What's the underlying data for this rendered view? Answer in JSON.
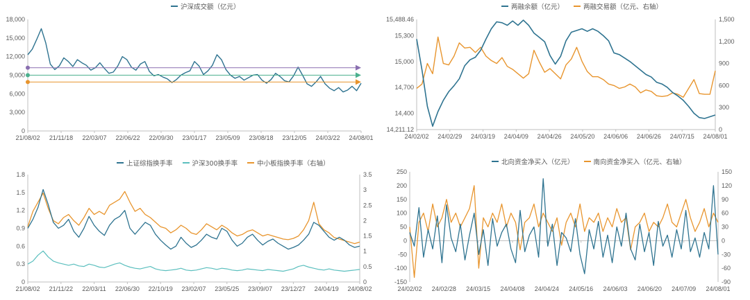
{
  "colors": {
    "blue": "#2E7390",
    "orange": "#E8952E",
    "teal": "#5BBFBE",
    "purple": "#8A6FB0",
    "green": "#4BB08E",
    "axis": "#bfbfbf",
    "text": "#595959"
  },
  "chart_data": [
    {
      "id": "turnover",
      "type": "line",
      "title": "",
      "legend": [
        "沪深成交额（亿元）"
      ],
      "yticks": [
        "18,000",
        "15,000",
        "12,000",
        "9,000",
        "6,000",
        "3,000",
        "0"
      ],
      "ylim": [
        0,
        18000
      ],
      "xticks": [
        "21/08/02",
        "21/11/18",
        "22/03/07",
        "22/06/22",
        "22/09/30",
        "23/01/17",
        "23/05/09",
        "23/08/18",
        "23/12/05",
        "24/03/22",
        "24/08/01"
      ],
      "series": [
        {
          "name": "沪深成交额（亿元）",
          "values": [
            12300,
            13200,
            14800,
            16500,
            14200,
            10800,
            9900,
            10500,
            11800,
            11200,
            10400,
            11500,
            11000,
            10600,
            9800,
            10200,
            11000,
            10100,
            9300,
            9500,
            10500,
            12000,
            11500,
            10300,
            9800,
            10800,
            11200,
            9600,
            8900,
            9100,
            8700,
            8400,
            7800,
            8300,
            9000,
            9400,
            9700,
            11200,
            10500,
            9100,
            9700,
            10600,
            12300,
            11500,
            9900,
            9000,
            8500,
            8800,
            8200,
            8600,
            9000,
            9100,
            8200,
            7700,
            8300,
            9300,
            8800,
            8100,
            7900,
            8900,
            10300,
            9000,
            7600,
            7200,
            7900,
            8800,
            7600,
            6900,
            6500,
            7000,
            6300,
            6600,
            7200,
            6500,
            7700
          ]
        },
        {
          "name": "ref-upper",
          "values": [
            10200
          ]
        },
        {
          "name": "ref-mid",
          "values": [
            9000
          ]
        },
        {
          "name": "ref-lower",
          "values": [
            7900
          ]
        }
      ]
    },
    {
      "id": "margin",
      "type": "line",
      "title": "",
      "legend": [
        "两融余额（亿元）",
        "两融交易额（亿元、右轴）"
      ],
      "yticks_left": [
        "15,488.46",
        "15,300",
        "15,000",
        "14,700",
        "14,400",
        "14,211.12"
      ],
      "ylim_left": [
        14211.12,
        15488.46
      ],
      "yticks_right": [
        "1,500",
        "1,200",
        "900",
        "600",
        "300",
        "0"
      ],
      "ylim_right": [
        0,
        1500
      ],
      "xticks": [
        "24/02/02",
        "24/02/29",
        "24/03/19",
        "24/04/09",
        "24/04/26",
        "24/05/20",
        "24/06/06",
        "24/06/26",
        "24/07/15",
        "24/08/01"
      ],
      "series": [
        {
          "name": "两融余额（亿元）",
          "axis": "left",
          "values": [
            15260,
            14900,
            14480,
            14250,
            14420,
            14550,
            14650,
            14720,
            14800,
            14950,
            15020,
            15050,
            15130,
            15260,
            15380,
            15460,
            15450,
            15420,
            15470,
            15420,
            15480,
            15420,
            15330,
            15280,
            15230,
            15070,
            14970,
            15060,
            15240,
            15340,
            15360,
            15380,
            15350,
            15380,
            15350,
            15300,
            15240,
            15100,
            15080,
            15040,
            15000,
            14950,
            14900,
            14850,
            14820,
            14760,
            14740,
            14700,
            14640,
            14600,
            14550,
            14480,
            14400,
            14350,
            14340,
            14360,
            14380
          ]
        },
        {
          "name": "两融交易额（亿元、右轴）",
          "axis": "right",
          "values": [
            560,
            620,
            900,
            760,
            1260,
            900,
            880,
            1000,
            1180,
            1110,
            1120,
            1050,
            1120,
            1000,
            940,
            900,
            980,
            860,
            820,
            760,
            700,
            760,
            1080,
            920,
            780,
            830,
            760,
            690,
            880,
            960,
            1120,
            930,
            790,
            720,
            720,
            680,
            620,
            600,
            560,
            580,
            620,
            580,
            500,
            540,
            520,
            460,
            450,
            460,
            500,
            480,
            440,
            560,
            680,
            490,
            480,
            480,
            800
          ]
        }
      ]
    },
    {
      "id": "turnover-rate",
      "type": "line",
      "title": "",
      "legend": [
        "上证综指换手率",
        "沪深300换手率",
        "中小板指换手率（右轴）"
      ],
      "yticks_left": [
        "1.8",
        "1.5",
        "1.2",
        "0.9",
        "0.6",
        "0.3",
        "0"
      ],
      "ylim_left": [
        0,
        1.8
      ],
      "yticks_right": [
        "3.5",
        "3",
        "2.5",
        "2",
        "1.5",
        "1",
        "0.5",
        "0"
      ],
      "ylim_right": [
        0,
        3.5
      ],
      "xticks": [
        "21/08/02",
        "21/11/22",
        "22/03/11",
        "22/06/30",
        "22/10/19",
        "23/02/07",
        "23/05/25",
        "23/09/07",
        "23/12/27",
        "24/04/19",
        "24/08/02"
      ],
      "series": [
        {
          "name": "上证综指换手率",
          "axis": "left",
          "values": [
            0.9,
            1.05,
            1.25,
            1.55,
            1.3,
            1.0,
            0.9,
            0.95,
            1.05,
            0.85,
            0.75,
            0.9,
            1.1,
            0.95,
            0.85,
            0.78,
            0.95,
            1.05,
            1.1,
            1.2,
            0.9,
            0.8,
            0.9,
            1.0,
            0.95,
            0.8,
            0.7,
            0.62,
            0.55,
            0.6,
            0.75,
            0.65,
            0.58,
            0.62,
            0.7,
            0.8,
            0.75,
            0.72,
            0.9,
            0.85,
            0.7,
            0.6,
            0.65,
            0.75,
            0.8,
            0.7,
            0.62,
            0.68,
            0.72,
            0.65,
            0.6,
            0.55,
            0.58,
            0.62,
            0.7,
            0.8,
            1.0,
            0.95,
            0.85,
            0.75,
            0.7,
            0.75,
            0.7,
            0.62,
            0.58,
            0.6
          ]
        },
        {
          "name": "沪深300换手率",
          "axis": "left",
          "values": [
            0.3,
            0.35,
            0.45,
            0.52,
            0.42,
            0.35,
            0.32,
            0.3,
            0.28,
            0.3,
            0.27,
            0.26,
            0.3,
            0.28,
            0.25,
            0.24,
            0.27,
            0.3,
            0.32,
            0.28,
            0.25,
            0.23,
            0.22,
            0.24,
            0.26,
            0.22,
            0.2,
            0.19,
            0.2,
            0.21,
            0.23,
            0.2,
            0.19,
            0.2,
            0.22,
            0.24,
            0.23,
            0.21,
            0.23,
            0.22,
            0.2,
            0.19,
            0.2,
            0.22,
            0.21,
            0.2,
            0.19,
            0.21,
            0.2,
            0.19,
            0.18,
            0.2,
            0.22,
            0.26,
            0.28,
            0.25,
            0.23,
            0.21,
            0.2,
            0.22,
            0.2,
            0.19,
            0.18,
            0.19,
            0.2,
            0.21
          ]
        },
        {
          "name": "中小板指换手率（右轴）",
          "axis": "right",
          "values": [
            1.8,
            2.3,
            2.6,
            2.9,
            2.4,
            2.0,
            1.9,
            2.1,
            2.2,
            2.0,
            1.85,
            2.1,
            2.4,
            2.2,
            2.3,
            2.2,
            2.5,
            2.6,
            2.7,
            2.95,
            2.6,
            2.3,
            2.4,
            2.2,
            2.1,
            1.95,
            1.8,
            1.75,
            1.6,
            1.7,
            1.85,
            1.75,
            1.6,
            1.55,
            1.7,
            1.9,
            1.8,
            1.7,
            1.85,
            1.75,
            1.6,
            1.5,
            1.55,
            1.65,
            1.7,
            1.6,
            1.5,
            1.55,
            1.5,
            1.45,
            1.4,
            1.38,
            1.42,
            1.5,
            1.7,
            2.0,
            2.6,
            1.9,
            1.7,
            1.6,
            1.45,
            1.4,
            1.35,
            1.3,
            1.25,
            1.3
          ]
        }
      ]
    },
    {
      "id": "northbound",
      "type": "line",
      "title": "",
      "legend": [
        "北向资金净买入（亿元）",
        "南向资金净买入（亿元、右轴）"
      ],
      "yticks_left": [
        "250",
        "200",
        "150",
        "100",
        "50",
        "0",
        "-50",
        "-100",
        "-150"
      ],
      "ylim_left": [
        -150,
        250
      ],
      "yticks_right": [
        "150",
        "120",
        "90",
        "60",
        "30",
        "0",
        "-30",
        "-60",
        "-90"
      ],
      "ylim_right": [
        -90,
        150
      ],
      "xticks": [
        "24/02/02",
        "24/02/28",
        "24/03/15",
        "24/04/08",
        "24/04/24",
        "24/05/16",
        "24/06/03",
        "24/06/20",
        "24/07/09",
        "24/08/01"
      ],
      "series": [
        {
          "name": "北向资金净买入（亿元）",
          "axis": "left",
          "values": [
            30,
            -20,
            120,
            -60,
            40,
            -30,
            90,
            -80,
            130,
            10,
            -40,
            60,
            -70,
            20,
            100,
            -50,
            40,
            -90,
            80,
            -20,
            30,
            60,
            -30,
            -80,
            110,
            -40,
            20,
            50,
            -60,
            225,
            -20,
            60,
            -90,
            30,
            10,
            -40,
            80,
            -50,
            -120,
            40,
            -30,
            70,
            -60,
            20,
            -80,
            50,
            -20,
            100,
            -30,
            -70,
            60,
            -40,
            30,
            -90,
            70,
            -20,
            20,
            -60,
            40,
            -30,
            110,
            -40,
            10,
            -60,
            30,
            -30,
            200,
            -50
          ]
        },
        {
          "name": "南向资金净买入（亿元、右轴）",
          "axis": "right",
          "values": [
            30,
            -80,
            40,
            60,
            20,
            80,
            30,
            50,
            90,
            40,
            60,
            30,
            50,
            70,
            120,
            -60,
            50,
            30,
            60,
            40,
            80,
            30,
            60,
            40,
            -20,
            40,
            50,
            80,
            30,
            60,
            40,
            20,
            50,
            -10,
            40,
            60,
            30,
            80,
            20,
            50,
            40,
            60,
            20,
            50,
            30,
            70,
            40,
            50,
            -20,
            30,
            40,
            60,
            20,
            40,
            30,
            50,
            80,
            40,
            30,
            60,
            90,
            50,
            20,
            40,
            70,
            30,
            60,
            40
          ]
        }
      ]
    }
  ]
}
